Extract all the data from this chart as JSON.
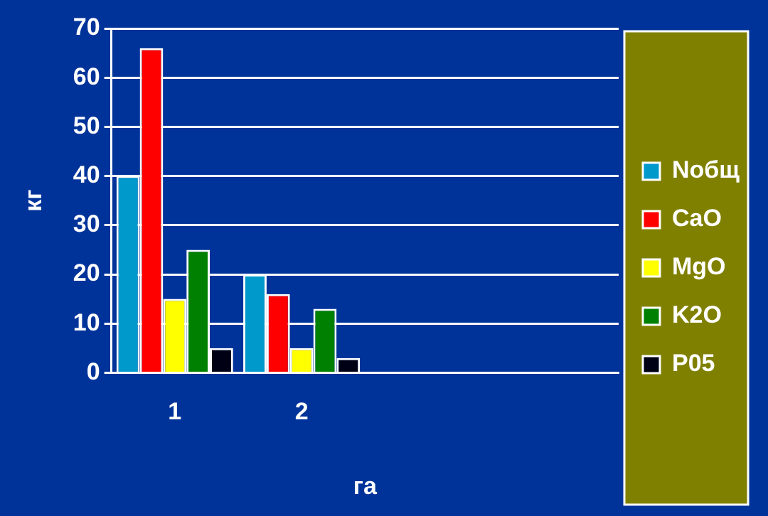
{
  "chart_data": {
    "type": "bar",
    "xlabel": "га",
    "ylabel": "кг",
    "categories": [
      "1",
      "2",
      null,
      null
    ],
    "series": [
      {
        "name": "Nобщ",
        "color": "#0099cc",
        "values": [
          40,
          20,
          null,
          null
        ]
      },
      {
        "name": "CaO",
        "color": "#ff0000",
        "values": [
          66,
          16,
          null,
          null
        ]
      },
      {
        "name": "MgO",
        "color": "#ffff00",
        "values": [
          15,
          5,
          null,
          null
        ]
      },
      {
        "name": "K2O",
        "color": "#008000",
        "values": [
          25,
          13,
          null,
          null
        ]
      },
      {
        "name": "P05",
        "color": "#000015",
        "values": [
          5,
          3,
          null,
          null
        ]
      }
    ],
    "ylim": [
      0,
      70
    ],
    "yticks": [
      0,
      10,
      20,
      30,
      40,
      50,
      60,
      70
    ],
    "grid": "y",
    "legend": "right"
  }
}
